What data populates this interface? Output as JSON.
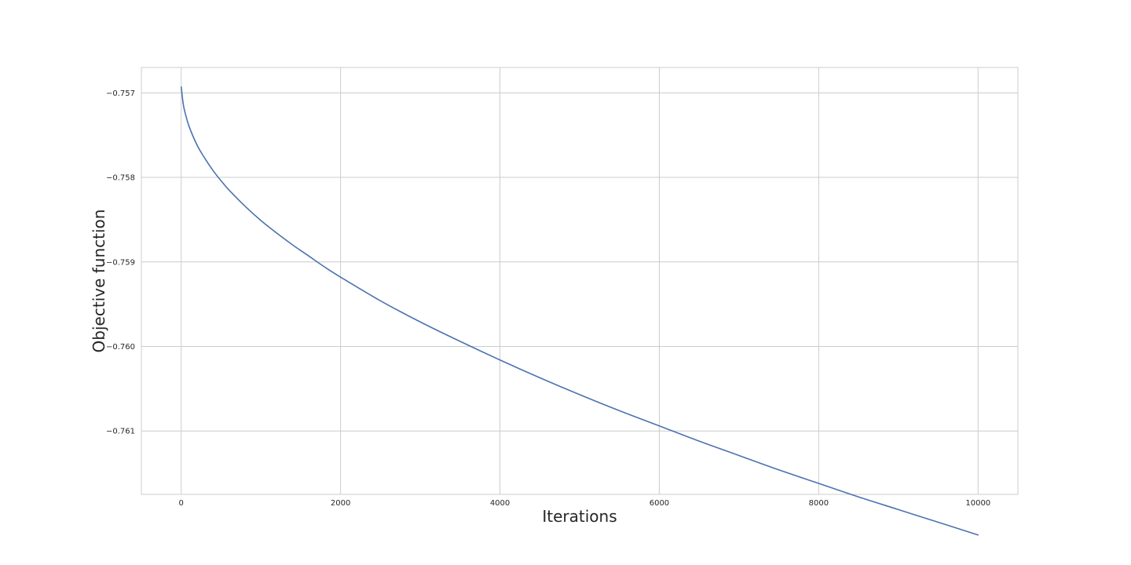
{
  "chart_data": {
    "type": "line",
    "title": "",
    "xlabel": "Iterations",
    "ylabel": "Objective function",
    "xlim": [
      -500,
      10500
    ],
    "ylim": [
      -0.76175,
      -0.7567
    ],
    "xticks": [
      0,
      2000,
      4000,
      6000,
      8000,
      10000
    ],
    "xtick_labels": [
      "0",
      "2000",
      "4000",
      "6000",
      "8000",
      "10000"
    ],
    "yticks": [
      -0.757,
      -0.758,
      -0.759,
      -0.76,
      -0.761
    ],
    "ytick_labels": [
      "−0.757",
      "−0.758",
      "−0.759",
      "−0.760",
      "−0.761"
    ],
    "grid": true,
    "series": [
      {
        "color": "#4c72b0",
        "x": [
          0,
          25,
          50,
          100,
          200,
          300,
          400,
          500,
          600,
          800,
          1000,
          1200,
          1400,
          1600,
          1800,
          2000,
          2500,
          3000,
          3500,
          4000,
          4500,
          5000,
          5500,
          6000,
          6500,
          7000,
          7500,
          8000,
          8500,
          9000,
          9500,
          10000
        ],
        "y": [
          -0.75693,
          -0.75713,
          -0.75724,
          -0.7574,
          -0.75762,
          -0.75778,
          -0.75792,
          -0.75804,
          -0.75815,
          -0.75834,
          -0.75851,
          -0.75866,
          -0.7588,
          -0.75893,
          -0.75906,
          -0.75918,
          -0.75946,
          -0.75971,
          -0.75994,
          -0.76016,
          -0.76037,
          -0.76057,
          -0.76076,
          -0.76094,
          -0.76112,
          -0.76129,
          -0.76146,
          -0.76162,
          -0.76178,
          -0.76193,
          -0.76208,
          -0.76223
        ]
      }
    ]
  }
}
